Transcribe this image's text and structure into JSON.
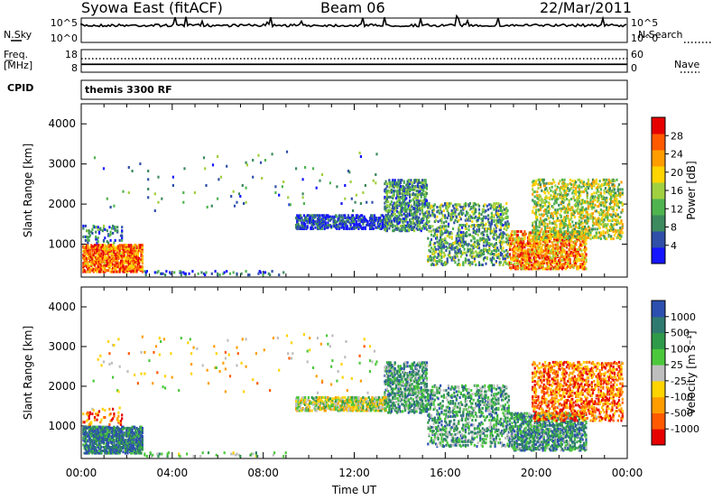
{
  "header": {
    "site": "Syowa East (fitACF)",
    "beam": "Beam 06",
    "date": "22/Mar/2011"
  },
  "side_labels": {
    "nsky": "N.Sky",
    "nsearch": "N.Search",
    "freq": "Freq.",
    "freq_unit": "[MHz]",
    "nave": "Nave",
    "cpid": "CPID",
    "cpid_value": "themis 3300 RF"
  },
  "colors": {
    "frame": "#000000",
    "power_scale": [
      "#1515ff",
      "#2f4fa8",
      "#3c8a5e",
      "#4fb44f",
      "#a0d040",
      "#ffd400",
      "#ff9d00",
      "#ff5a00",
      "#e60000"
    ],
    "velocity_scale": [
      "#e60000",
      "#ff5a00",
      "#ff9d00",
      "#ffd400",
      "#bebebe",
      "#4cc83c",
      "#2f9a4a",
      "#2f7a70",
      "#2d4fb0"
    ]
  },
  "chart_data": [
    {
      "type": "line",
      "title": "N.Sky / N.Search",
      "x_range": [
        "00:00",
        "24:00"
      ],
      "left_ticks": [
        "10^5",
        "10^0"
      ],
      "right_ticks": [
        "10^5",
        "10^0"
      ],
      "series": [
        {
          "name": "N.Sky",
          "level": 0.7
        },
        {
          "name": "N.Search",
          "level": 0.7
        }
      ]
    },
    {
      "type": "line",
      "title": "Freq. / Nave",
      "x_range": [
        "00:00",
        "24:00"
      ],
      "left_ticks": [
        "18",
        "8"
      ],
      "right_ticks": [
        "60",
        "0"
      ],
      "series": [
        {
          "name": "Freq. [MHz]",
          "level": 0.35
        },
        {
          "name": "Nave",
          "level": 0.6
        }
      ]
    },
    {
      "type": "heatmap",
      "title": "Power",
      "xlabel": "",
      "ylabel": "Slant Range [km]",
      "x_ticks": [
        "00:00",
        "04:00",
        "08:00",
        "12:00",
        "16:00",
        "20:00",
        "00:00"
      ],
      "y_ticks": [
        "1000",
        "2000",
        "3000",
        "4000"
      ],
      "ylim": [
        180,
        4500
      ],
      "colorbar_label": "Power [dB]",
      "colorbar_ticks": [
        "4",
        "8",
        "12",
        "16",
        "20",
        "24",
        "28"
      ],
      "value_range": [
        0,
        30
      ],
      "clusters": [
        {
          "t": [
            0.05,
            2.7
          ],
          "r": [
            280,
            980
          ],
          "level": 0.8,
          "density": 0.55
        },
        {
          "t": [
            0.05,
            1.8
          ],
          "r": [
            1000,
            1450
          ],
          "level": 0.25,
          "density": 0.12
        },
        {
          "t": [
            2.7,
            9.0
          ],
          "r": [
            200,
            330
          ],
          "level": 0.2,
          "density": 0.1
        },
        {
          "t": [
            9.4,
            13.4
          ],
          "r": [
            1350,
            1700
          ],
          "level": 0.1,
          "density": 0.45
        },
        {
          "t": [
            13.3,
            15.2
          ],
          "r": [
            1300,
            2600
          ],
          "level": 0.3,
          "density": 0.35
        },
        {
          "t": [
            15.2,
            18.8
          ],
          "r": [
            450,
            2000
          ],
          "level": 0.35,
          "density": 0.22
        },
        {
          "t": [
            18.8,
            22.2
          ],
          "r": [
            350,
            1300
          ],
          "level": 0.75,
          "density": 0.4
        },
        {
          "t": [
            19.8,
            23.8
          ],
          "r": [
            1100,
            2600
          ],
          "level": 0.5,
          "density": 0.25
        },
        {
          "t": [
            0.5,
            13.0
          ],
          "r": [
            1800,
            3300
          ],
          "level": 0.3,
          "density": 0.008
        }
      ]
    },
    {
      "type": "heatmap",
      "title": "Velocity",
      "xlabel": "Time UT",
      "ylabel": "Slant Range [km]",
      "x_ticks": [
        "00:00",
        "04:00",
        "08:00",
        "12:00",
        "16:00",
        "20:00",
        "00:00"
      ],
      "y_ticks": [
        "1000",
        "2000",
        "3000",
        "4000"
      ],
      "ylim": [
        180,
        4500
      ],
      "colorbar_label": "Velocity [m s⁻¹]",
      "colorbar_ticks": [
        "-1000",
        "-500",
        "-100",
        "-25",
        "25",
        "100",
        "500",
        "1000"
      ],
      "value_range": [
        -1200,
        1200
      ],
      "clusters": [
        {
          "t": [
            0.05,
            2.7
          ],
          "r": [
            280,
            980
          ],
          "level": 0.85,
          "density": 0.55
        },
        {
          "t": [
            0.05,
            1.8
          ],
          "r": [
            1000,
            1450
          ],
          "level": 0.2,
          "density": 0.12
        },
        {
          "t": [
            2.7,
            9.0
          ],
          "r": [
            200,
            330
          ],
          "level": 0.6,
          "density": 0.1
        },
        {
          "t": [
            9.4,
            13.4
          ],
          "r": [
            1350,
            1700
          ],
          "level": 0.5,
          "density": 0.45
        },
        {
          "t": [
            13.3,
            15.2
          ],
          "r": [
            1300,
            2600
          ],
          "level": 0.7,
          "density": 0.35
        },
        {
          "t": [
            15.2,
            18.8
          ],
          "r": [
            450,
            2000
          ],
          "level": 0.7,
          "density": 0.22
        },
        {
          "t": [
            18.8,
            22.2
          ],
          "r": [
            350,
            1300
          ],
          "level": 0.75,
          "density": 0.4
        },
        {
          "t": [
            19.8,
            23.8
          ],
          "r": [
            1100,
            2600
          ],
          "level": 0.2,
          "density": 0.25
        },
        {
          "t": [
            0.5,
            13.0
          ],
          "r": [
            1800,
            3300
          ],
          "level": 0.4,
          "density": 0.008
        }
      ]
    }
  ]
}
